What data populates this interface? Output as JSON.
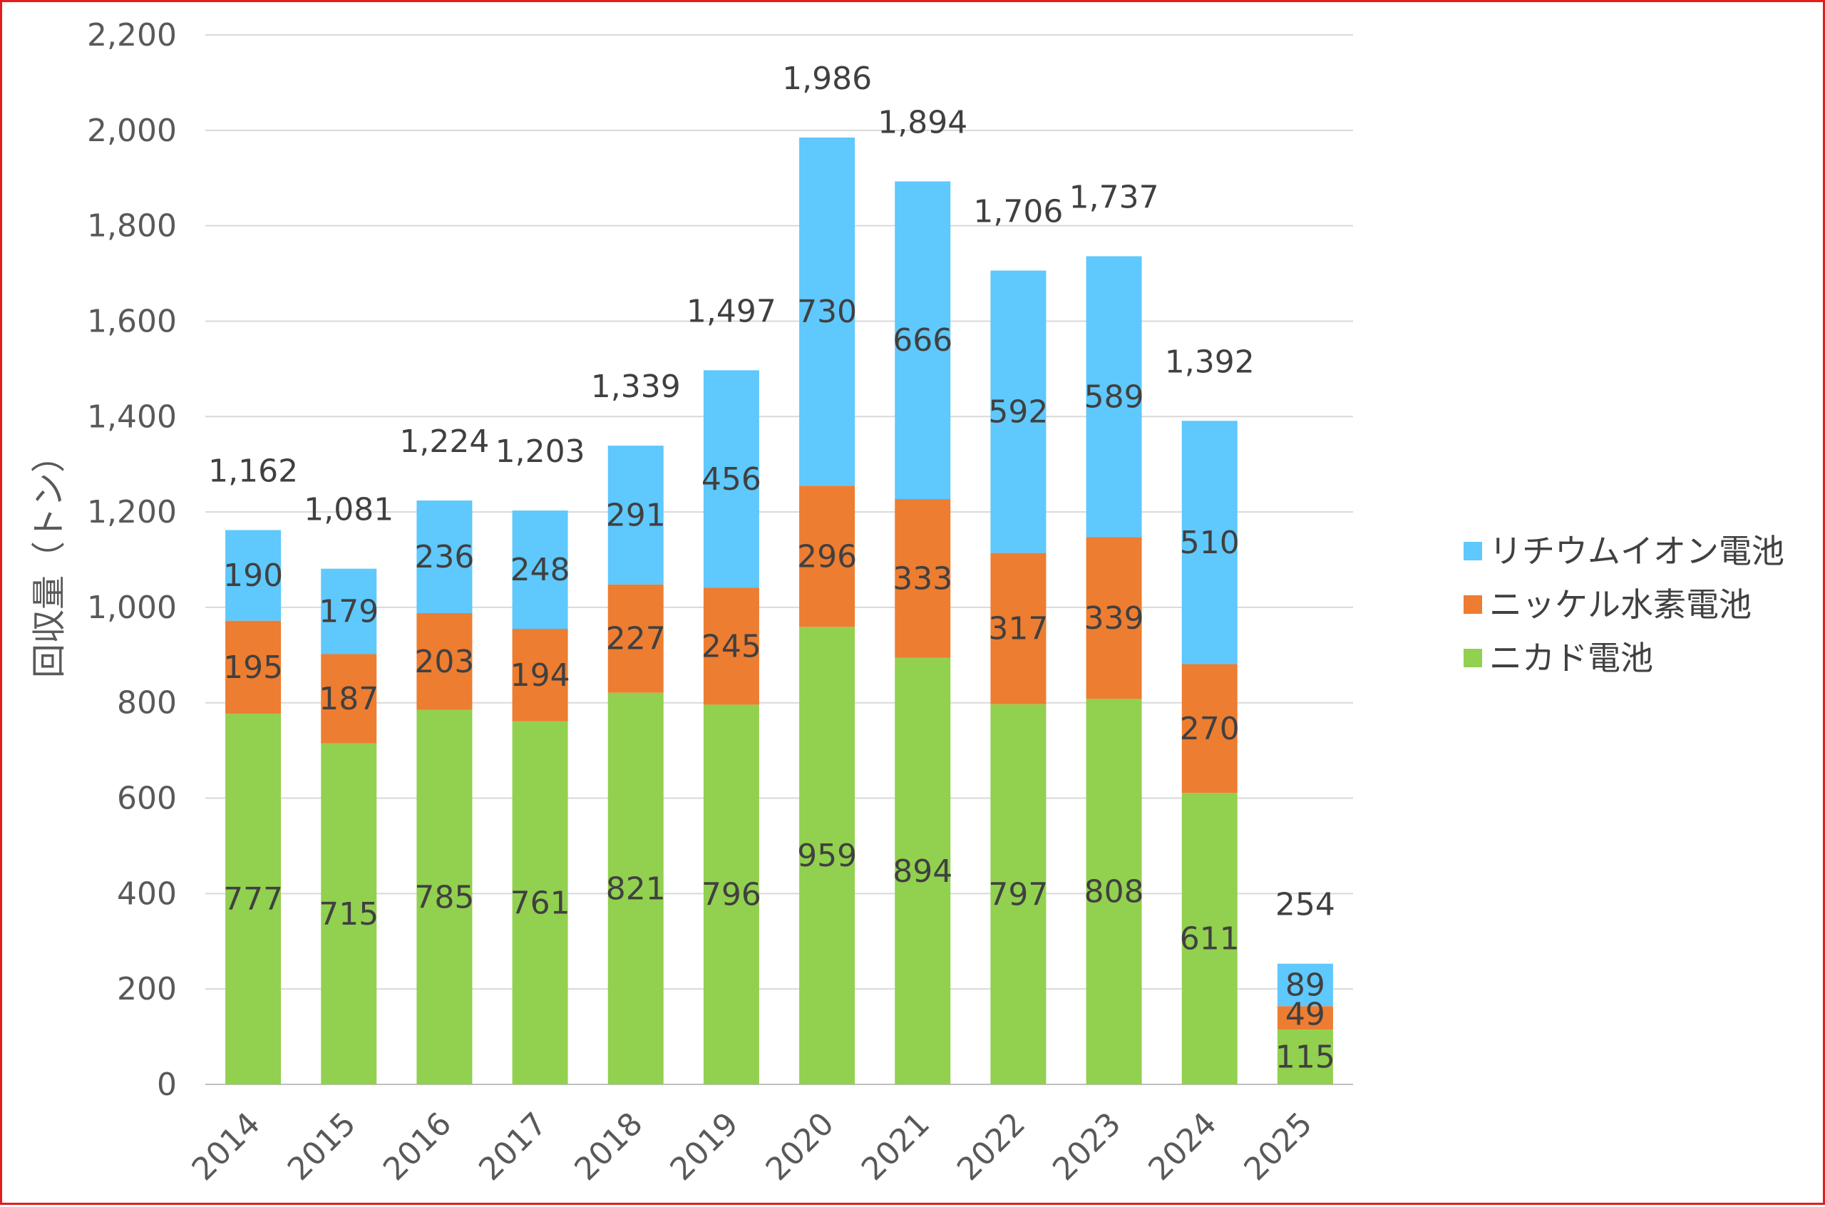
{
  "chart_data": {
    "type": "bar",
    "stacked": true,
    "categories": [
      "2014",
      "2015",
      "2016",
      "2017",
      "2018",
      "2019",
      "2020",
      "2021",
      "2022",
      "2023",
      "2024",
      "2025"
    ],
    "series": [
      {
        "name": "ニカド電池",
        "color": "#92d050",
        "values": [
          777,
          715,
          785,
          761,
          821,
          796,
          959,
          894,
          797,
          808,
          611,
          115
        ]
      },
      {
        "name": "ニッケル水素電池",
        "color": "#ed7d31",
        "values": [
          195,
          187,
          203,
          194,
          227,
          245,
          296,
          333,
          317,
          339,
          270,
          49
        ]
      },
      {
        "name": "リチウムイオン電池",
        "color": "#5fc8fc",
        "values": [
          190,
          179,
          236,
          248,
          291,
          456,
          730,
          666,
          592,
          589,
          510,
          89
        ]
      }
    ],
    "totals": [
      "1,162",
      "1,081",
      "1,224",
      "1,203",
      "1,339",
      "1,497",
      "1,986",
      "1,894",
      "1,706",
      "1,737",
      "1,392",
      "254"
    ],
    "ylabel": "回収量（トン）",
    "xlabel": "",
    "ylim": [
      0,
      2200
    ],
    "yticks": [
      "0",
      "200",
      "400",
      "600",
      "800",
      "1,000",
      "1,200",
      "1,400",
      "1,600",
      "1,800",
      "2,000",
      "2,200"
    ],
    "legend": {
      "position": "right",
      "order": [
        "リチウムイオン電池",
        "ニッケル水素電池",
        "ニカド電池"
      ]
    },
    "grid": true,
    "gridColor": "#d9d9d9"
  }
}
